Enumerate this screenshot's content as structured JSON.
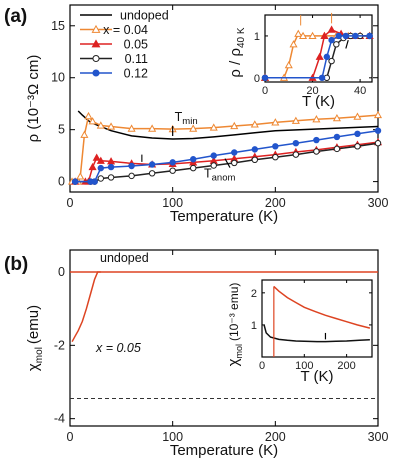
{
  "chart_data": [
    {
      "panel": "(a)",
      "type": "line",
      "xlabel": "Temperature (K)",
      "ylabel": "ρ (10⁻³Ω cm)",
      "xlim": [
        0,
        300
      ],
      "ylim": [
        -1,
        17
      ],
      "xticks": [
        0,
        100,
        200,
        300
      ],
      "yticks": [
        0,
        5,
        10,
        15
      ],
      "legend_position": "top-left",
      "annotations": {
        "tmin": "T",
        "tmin_sub": "min",
        "tanom": "T",
        "tanom_sub": "anom"
      },
      "series": [
        {
          "name": "undoped",
          "color": "#000000",
          "marker": "none",
          "x": [
            8,
            12,
            20,
            40,
            60,
            80,
            100,
            120,
            140,
            160,
            180,
            200,
            250,
            300
          ],
          "y": [
            6.8,
            6.4,
            5.7,
            4.9,
            4.4,
            4.2,
            4.1,
            4.15,
            4.3,
            4.5,
            4.7,
            4.9,
            5.1,
            5.3
          ]
        },
        {
          "name": "x = 0.04",
          "color": "#ee8833",
          "marker": "triangle-open",
          "x": [
            2,
            8,
            10,
            14,
            18,
            22,
            30,
            40,
            60,
            80,
            100,
            120,
            140,
            160,
            180,
            200,
            220,
            240,
            260,
            280,
            300
          ],
          "y": [
            0,
            0,
            0.5,
            4.5,
            6.3,
            5.8,
            5.4,
            5.3,
            5.1,
            5.1,
            5.05,
            5.1,
            5.2,
            5.35,
            5.5,
            5.7,
            5.85,
            6.0,
            6.1,
            6.25,
            6.4
          ]
        },
        {
          "name": "0.05",
          "color": "#dd2222",
          "marker": "triangle-filled",
          "x": [
            5,
            15,
            18,
            22,
            26,
            30,
            40,
            60,
            80,
            100,
            120,
            140,
            160,
            180,
            200,
            220,
            240,
            260,
            280,
            300
          ],
          "y": [
            0,
            0,
            0,
            1.4,
            2.3,
            2.0,
            1.95,
            1.75,
            1.65,
            1.7,
            1.85,
            2.0,
            2.2,
            2.4,
            2.6,
            2.85,
            3.05,
            3.3,
            3.55,
            3.8
          ]
        },
        {
          "name": "0.11",
          "color": "#222222",
          "marker": "circle-open",
          "x": [
            5,
            20,
            24,
            30,
            40,
            60,
            80,
            100,
            120,
            140,
            160,
            180,
            200,
            220,
            240,
            260,
            280,
            300
          ],
          "y": [
            0,
            0,
            0,
            0.3,
            0.4,
            0.55,
            0.8,
            1.05,
            1.3,
            1.55,
            1.8,
            2.1,
            2.35,
            2.6,
            2.9,
            3.15,
            3.4,
            3.7
          ]
        },
        {
          "name": "0.12",
          "color": "#2255cc",
          "marker": "circle-filled",
          "x": [
            5,
            20,
            24,
            30,
            40,
            60,
            80,
            100,
            120,
            140,
            160,
            180,
            200,
            220,
            240,
            260,
            280,
            300
          ],
          "y": [
            0,
            0,
            0,
            1.3,
            1.4,
            1.5,
            1.65,
            1.85,
            2.15,
            2.5,
            2.8,
            3.1,
            3.4,
            3.7,
            4.0,
            4.3,
            4.6,
            4.9
          ]
        }
      ],
      "inset": {
        "type": "line",
        "xlabel": "T (K)",
        "ylabel": "ρ / ρ40 K",
        "ylabel_main": "ρ / ρ",
        "ylabel_sub": "40 K",
        "xlim": [
          0,
          45
        ],
        "ylim": [
          -0.1,
          1.5
        ],
        "xticks": [
          0,
          20,
          40
        ],
        "yticks": [
          0,
          1
        ],
        "series": [
          {
            "name": "x = 0.04",
            "color": "#ee8833",
            "marker": "triangle-open",
            "x": [
              0,
              8,
              10,
              12,
              14,
              16,
              20,
              25,
              30,
              35,
              40,
              44
            ],
            "y": [
              0,
              0,
              0.3,
              0.8,
              1.05,
              1.0,
              1.0,
              1.0,
              1.0,
              1.0,
              1.0,
              1.0
            ]
          },
          {
            "name": "0.05",
            "color": "#dd2222",
            "marker": "triangle-filled",
            "x": [
              0,
              20,
              23,
              25,
              28,
              32,
              36,
              40,
              44
            ],
            "y": [
              0,
              0,
              0.5,
              1.0,
              1.15,
              1.05,
              1.0,
              1.0,
              1.0
            ]
          },
          {
            "name": "0.11",
            "color": "#222222",
            "marker": "circle-open",
            "x": [
              0,
              26,
              28,
              30,
              33,
              36,
              40,
              44
            ],
            "y": [
              0,
              0,
              0.4,
              0.8,
              0.95,
              1.0,
              1.0,
              1.0
            ]
          },
          {
            "name": "0.12",
            "color": "#2255cc",
            "marker": "circle-filled",
            "x": [
              0,
              24,
              26,
              28,
              31,
              34,
              38,
              44
            ],
            "y": [
              0,
              0,
              0.5,
              0.9,
              1.0,
              1.0,
              1.0,
              1.0
            ]
          }
        ]
      }
    },
    {
      "panel": "(b)",
      "type": "line",
      "xlabel": "Temperature (K)",
      "ylabel_main": "χ",
      "ylabel_sub": "mol",
      "ylabel_unit": "(emu)",
      "xlim": [
        0,
        300
      ],
      "ylim": [
        -4.2,
        0.6
      ],
      "xticks": [
        0,
        100,
        200,
        300
      ],
      "yticks": [
        0,
        -2,
        -4
      ],
      "dashed_reference_y": -3.45,
      "labels": {
        "undoped": "undoped",
        "x005": "x = 0.05"
      },
      "series": [
        {
          "name": "undoped",
          "color": "#dd4422",
          "x": [
            0,
            300
          ],
          "y": [
            0.0,
            0.0
          ]
        },
        {
          "name": "x = 0.05",
          "color": "#dd4422",
          "x": [
            2,
            5,
            8,
            12,
            16,
            20,
            24,
            27,
            30
          ],
          "y": [
            -1.9,
            -1.75,
            -1.6,
            -1.35,
            -1.0,
            -0.6,
            -0.2,
            0.0,
            0.0
          ]
        }
      ],
      "inset": {
        "type": "line",
        "xlabel": "T (K)",
        "ylabel_main": "χ",
        "ylabel_sub": "mol",
        "ylabel_unit": "(10⁻³ emu)",
        "xlim": [
          0,
          260
        ],
        "ylim": [
          0,
          2.4
        ],
        "xticks": [
          0,
          100,
          200
        ],
        "yticks": [
          1,
          2
        ],
        "series": [
          {
            "name": "x = 0.05",
            "color": "#dd4422",
            "x": [
              28,
              40,
              60,
              80,
              100,
              125,
              150,
              175,
              200,
              225,
              255
            ],
            "y": [
              2.2,
              2.05,
              1.85,
              1.7,
              1.55,
              1.42,
              1.3,
              1.2,
              1.1,
              1.0,
              0.9
            ]
          },
          {
            "name": "undoped",
            "color": "#111111",
            "x": [
              5,
              10,
              20,
              40,
              60,
              80,
              100,
              130,
              150,
              175,
              200,
              230,
              255
            ],
            "y": [
              1.0,
              0.75,
              0.62,
              0.55,
              0.52,
              0.5,
              0.49,
              0.48,
              0.48,
              0.49,
              0.5,
              0.52,
              0.54
            ]
          }
        ]
      }
    }
  ]
}
